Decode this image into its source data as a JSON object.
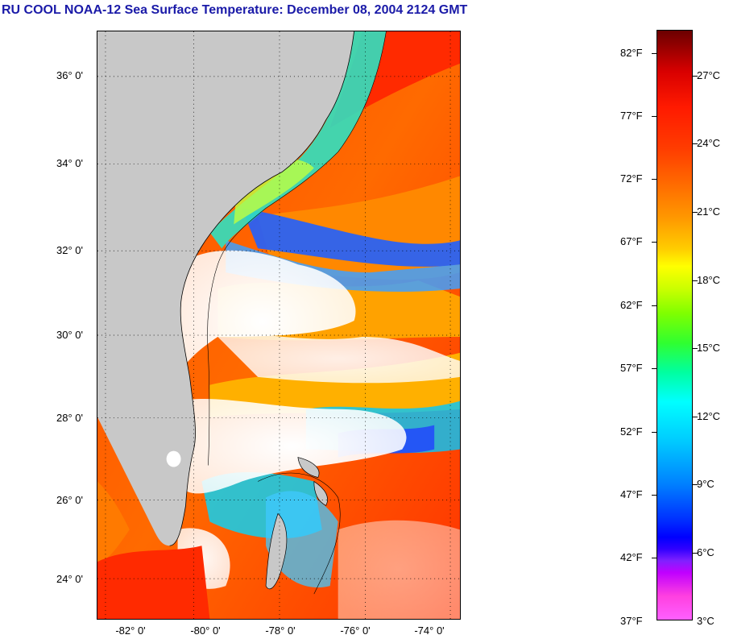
{
  "title": "RU COOL  NOAA-12  Sea Surface Temperature:  December 08, 2004 2124 GMT",
  "map": {
    "latitude_labels": [
      "36° 0'",
      "34° 0'",
      "32° 0'",
      "30° 0'",
      "28° 0'",
      "26° 0'",
      "24° 0'"
    ],
    "longitude_labels": [
      "-82° 0'",
      "-80° 0'",
      "-78° 0'",
      "-76° 0'",
      "-74° 0'"
    ],
    "colors": {
      "land": "#c8c8c8",
      "cloud": "#ffffff",
      "coastline": "#000000"
    }
  },
  "legend": {
    "fahrenheit_labels": [
      "82°F",
      "77°F",
      "72°F",
      "67°F",
      "62°F",
      "57°F",
      "52°F",
      "47°F",
      "42°F",
      "37°F"
    ],
    "celsius_labels": [
      "27°C",
      "24°C",
      "21°C",
      "18°C",
      "15°C",
      "12°C",
      "9°C",
      "6°C",
      "3°C"
    ]
  }
}
